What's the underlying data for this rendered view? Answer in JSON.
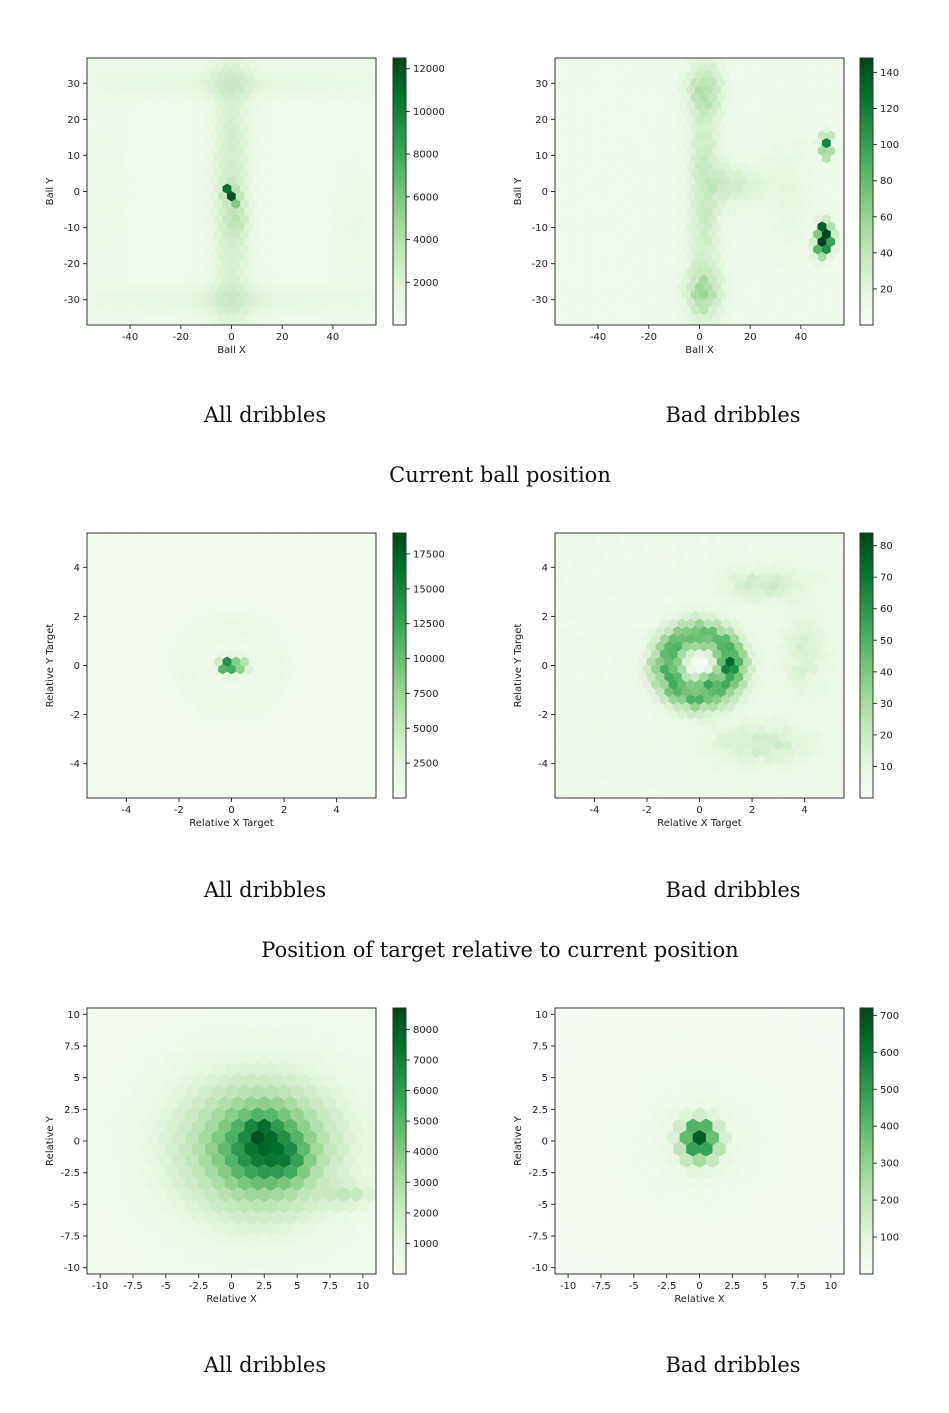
{
  "colors": {
    "cmap_low": "#f7fcf5",
    "cmap_mid": "#74c476",
    "cmap_high": "#00441b",
    "frame": "#333333"
  },
  "captions": {
    "row1": "Current ball position",
    "row2": "Position of target relative to current position"
  },
  "chart_data": [
    {
      "type": "hexbin",
      "subtitle": "All dribbles",
      "xlabel": "Ball X",
      "ylabel": "Ball Y",
      "xlim": [
        -57,
        57
      ],
      "ylim": [
        -37,
        37
      ],
      "xticks": [
        -40,
        -20,
        0,
        20,
        40
      ],
      "yticks": [
        -30,
        -20,
        -10,
        0,
        10,
        20,
        30
      ],
      "colorbar": {
        "min": 0,
        "max": 12500,
        "ticks": [
          2000,
          4000,
          6000,
          8000,
          10000,
          12000
        ]
      },
      "gridsize": 33,
      "background": 0.04,
      "blobs": [
        {
          "x": 0,
          "y": 0,
          "sx": 6,
          "sy": 34,
          "a": 0.17
        },
        {
          "x": 0,
          "y": 30,
          "sx": 50,
          "sy": 3,
          "a": 0.09
        },
        {
          "x": 0,
          "y": -30,
          "sx": 50,
          "sy": 3,
          "a": 0.09
        },
        {
          "x": 48,
          "y": -10,
          "sx": 5,
          "sy": 10,
          "a": 0.06
        },
        {
          "x": -48,
          "y": 0,
          "sx": 5,
          "sy": 20,
          "a": 0.04
        },
        {
          "x": -1,
          "y": 0,
          "sx": 1.2,
          "sy": 1.2,
          "a": 1.0
        },
        {
          "x": 1,
          "y": -2,
          "sx": 1.2,
          "sy": 1.2,
          "a": 0.55
        },
        {
          "x": 2,
          "y": -8,
          "sx": 3,
          "sy": 3,
          "a": 0.1
        }
      ]
    },
    {
      "type": "hexbin",
      "subtitle": "Bad dribbles",
      "xlabel": "Ball X",
      "ylabel": "Ball Y",
      "xlim": [
        -57,
        57
      ],
      "ylim": [
        -37,
        37
      ],
      "xticks": [
        -40,
        -20,
        0,
        20,
        40
      ],
      "yticks": [
        -30,
        -20,
        -10,
        0,
        10,
        20,
        30
      ],
      "colorbar": {
        "min": 0,
        "max": 148,
        "ticks": [
          20,
          40,
          60,
          80,
          100,
          120,
          140
        ]
      },
      "gridsize": 33,
      "background": 0.05,
      "noise": 0.12,
      "blobs": [
        {
          "x": 2,
          "y": 0,
          "sx": 5,
          "sy": 32,
          "a": 0.17
        },
        {
          "x": 2,
          "y": 28,
          "sx": 5,
          "sy": 4,
          "a": 0.18
        },
        {
          "x": 1,
          "y": -28,
          "sx": 5,
          "sy": 4,
          "a": 0.22
        },
        {
          "x": 50,
          "y": -13,
          "sx": 2,
          "sy": 2,
          "a": 1.0
        },
        {
          "x": 49,
          "y": -10,
          "sx": 1.5,
          "sy": 1.5,
          "a": 0.8
        },
        {
          "x": 50,
          "y": 14,
          "sx": 1.5,
          "sy": 1.5,
          "a": 0.7
        },
        {
          "x": 50,
          "y": 11,
          "sx": 1.5,
          "sy": 1.5,
          "a": 0.45
        },
        {
          "x": 48,
          "y": -16,
          "sx": 2,
          "sy": 2,
          "a": 0.5
        },
        {
          "x": 15,
          "y": 2,
          "sx": 8,
          "sy": 4,
          "a": 0.15
        },
        {
          "x": 35,
          "y": 0,
          "sx": 6,
          "sy": 12,
          "a": 0.08
        }
      ]
    },
    {
      "type": "hexbin",
      "subtitle": "All dribbles",
      "xlabel": "Relative X Target",
      "ylabel": "Relative Y Target",
      "xlim": [
        -5.5,
        5.5
      ],
      "ylim": [
        -5.4,
        5.4
      ],
      "xticks": [
        -4,
        -2,
        0,
        2,
        4
      ],
      "yticks": [
        -4,
        -2,
        0,
        2,
        4
      ],
      "colorbar": {
        "min": 0,
        "max": 19000,
        "ticks": [
          2500,
          5000,
          7500,
          10000,
          12500,
          15000,
          17500
        ]
      },
      "gridsize": 33,
      "background": 0.03,
      "ring": {
        "r": 1.6,
        "w": 0.5,
        "a": 0.06
      },
      "blobs": [
        {
          "x": 0,
          "y": 0,
          "sx": 0.35,
          "sy": 0.25,
          "a": 0.45
        },
        {
          "x": -0.2,
          "y": 0,
          "sx": 0.15,
          "sy": 0.15,
          "a": 0.7
        },
        {
          "x": 0.4,
          "y": 0,
          "sx": 0.2,
          "sy": 0.2,
          "a": 0.2
        }
      ]
    },
    {
      "type": "hexbin",
      "subtitle": "Bad dribbles",
      "xlabel": "Relative X Target",
      "ylabel": "Relative Y Target",
      "xlim": [
        -5.5,
        5.5
      ],
      "ylim": [
        -5.4,
        5.4
      ],
      "xticks": [
        -4,
        -2,
        0,
        2,
        4
      ],
      "yticks": [
        -4,
        -2,
        0,
        2,
        4
      ],
      "colorbar": {
        "min": 0,
        "max": 84,
        "ticks": [
          10,
          20,
          30,
          40,
          50,
          60,
          70,
          80
        ]
      },
      "gridsize": 33,
      "background": 0.06,
      "noise": 0.15,
      "ring": {
        "r": 1.2,
        "w": 0.5,
        "a": 0.5
      },
      "hole": {
        "x": 0,
        "y": 0.1,
        "s": 0.35
      },
      "blobs": [
        {
          "x": 1.1,
          "y": 0,
          "sx": 0.2,
          "sy": 0.2,
          "a": 0.45
        },
        {
          "x": 0.3,
          "y": -0.5,
          "sx": 0.2,
          "sy": 0.2,
          "a": 0.35
        },
        {
          "x": 2.5,
          "y": 3.3,
          "sx": 1.2,
          "sy": 0.5,
          "a": 0.15
        },
        {
          "x": 2.3,
          "y": -3.2,
          "sx": 1.4,
          "sy": 0.6,
          "a": 0.15
        },
        {
          "x": 4,
          "y": 0.5,
          "sx": 0.6,
          "sy": 1.2,
          "a": 0.12
        }
      ]
    },
    {
      "type": "hexbin",
      "subtitle": "All dribbles",
      "xlabel": "Relative X",
      "ylabel": "Relative Y",
      "xlim": [
        -11,
        11
      ],
      "ylim": [
        -10.5,
        10.5
      ],
      "xticks": [
        -10.0,
        -7.5,
        -5.0,
        -2.5,
        0.0,
        2.5,
        5.0,
        7.5,
        10.0
      ],
      "yticks": [
        -10.0,
        -7.5,
        -5.0,
        -2.5,
        0.0,
        2.5,
        5.0,
        7.5,
        10.0
      ],
      "colorbar": {
        "min": 0,
        "max": 8700,
        "ticks": [
          1000,
          2000,
          3000,
          4000,
          5000,
          6000,
          7000,
          8000
        ]
      },
      "gridsize": 22,
      "background": 0.03,
      "blobs": [
        {
          "x": 2,
          "y": -0.5,
          "sx": 4.5,
          "sy": 4,
          "a": 0.45
        },
        {
          "x": 2.5,
          "y": -0.5,
          "sx": 2,
          "sy": 2,
          "a": 0.4
        },
        {
          "x": 2.2,
          "y": 0.8,
          "sx": 0.6,
          "sy": 0.6,
          "a": 0.2
        },
        {
          "x": 4.5,
          "y": -1.5,
          "sx": 1,
          "sy": 1,
          "a": 0.15
        },
        {
          "x": 9,
          "y": -4.3,
          "sx": 1.3,
          "sy": 0.6,
          "a": 0.15
        }
      ]
    },
    {
      "type": "hexbin",
      "subtitle": "Bad dribbles",
      "xlabel": "Relative X",
      "ylabel": "Relative Y",
      "xlim": [
        -11,
        11
      ],
      "ylim": [
        -10.5,
        10.5
      ],
      "xticks": [
        -10.0,
        -7.5,
        -5.0,
        -2.5,
        0.0,
        2.5,
        5.0,
        7.5,
        10.0
      ],
      "yticks": [
        -10.0,
        -7.5,
        -5.0,
        -2.5,
        0.0,
        2.5,
        5.0,
        7.5,
        10.0
      ],
      "colorbar": {
        "min": 0,
        "max": 720,
        "ticks": [
          100,
          200,
          300,
          400,
          500,
          600,
          700
        ]
      },
      "gridsize": 22,
      "background": 0.02,
      "noise": 0.04,
      "blobs": [
        {
          "x": 0,
          "y": 0,
          "sx": 1.0,
          "sy": 1.1,
          "a": 0.75
        },
        {
          "x": 0,
          "y": 0.9,
          "sx": 0.4,
          "sy": 0.4,
          "a": 0.35
        },
        {
          "x": 0,
          "y": 0,
          "sx": 4,
          "sy": 4,
          "a": 0.06
        }
      ]
    }
  ]
}
